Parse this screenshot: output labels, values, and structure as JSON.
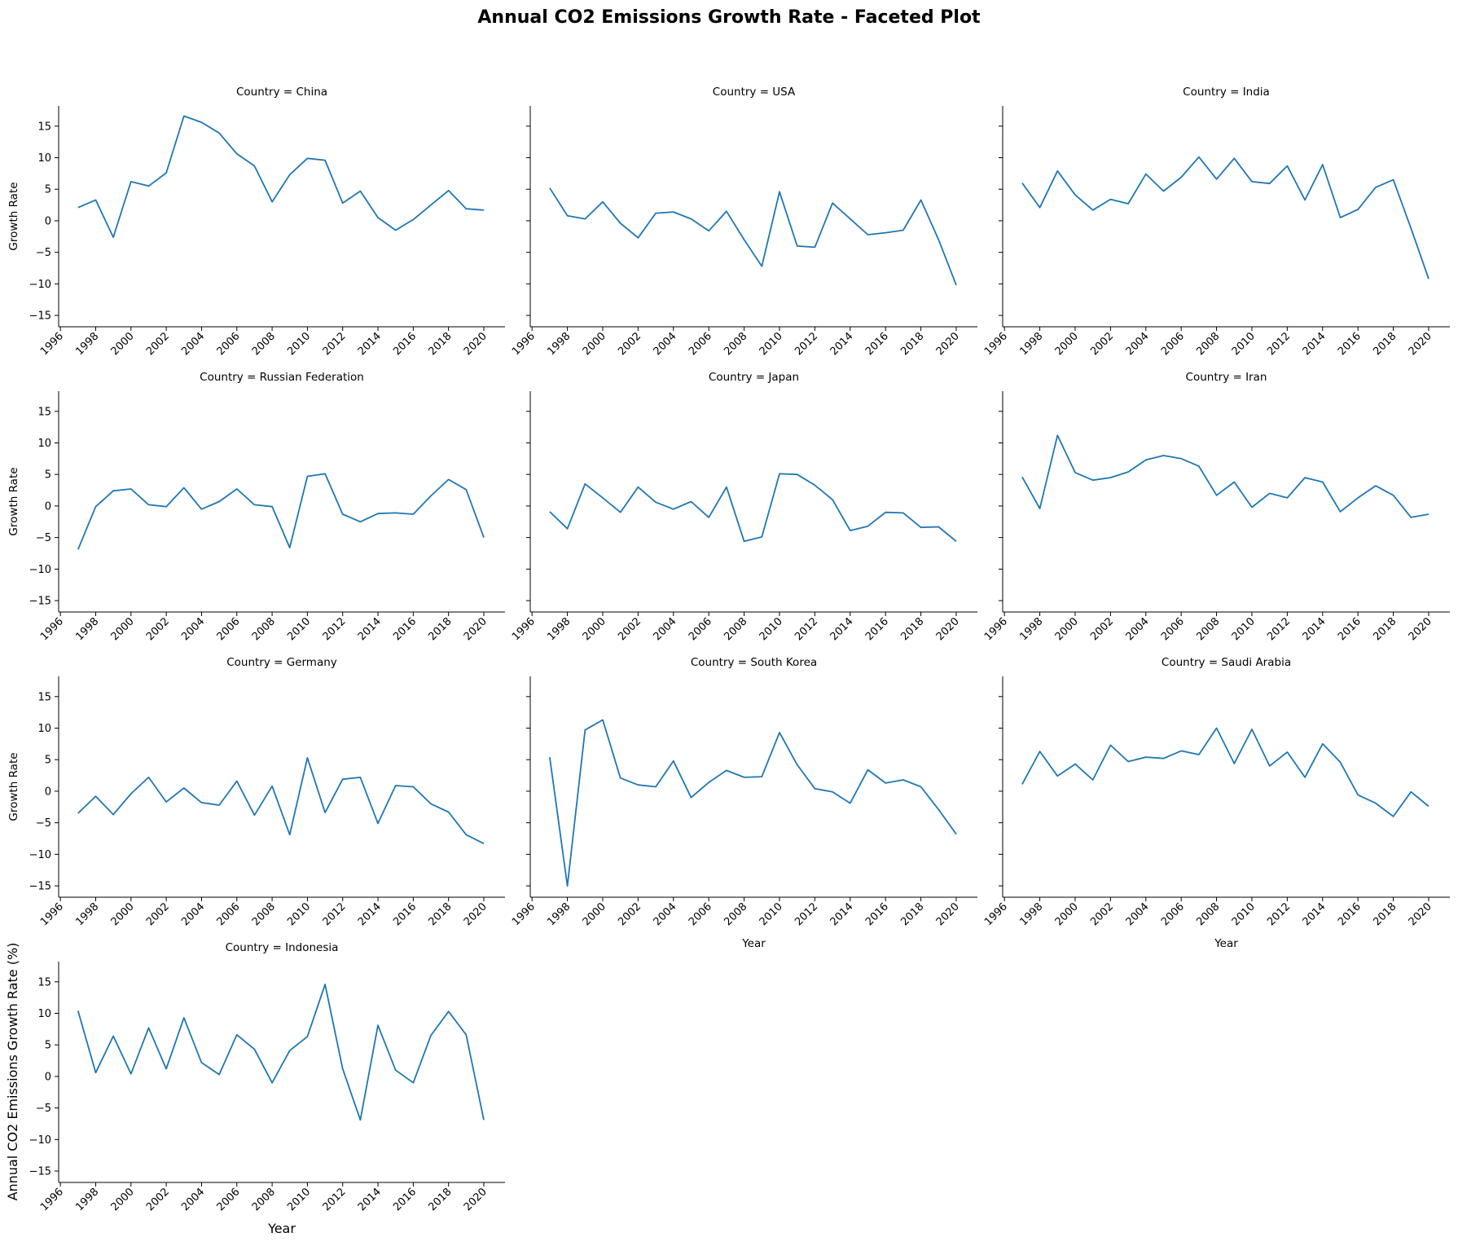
{
  "chart_data": {
    "type": "line",
    "title": "Annual CO2 Emissions Growth Rate - Faceted Plot",
    "facet_prefix": "Country = ",
    "panel_ylabel": "Growth Rate",
    "panel_xlabel": "Year",
    "figure_ylabel": "Annual CO2 Emissions Growth Rate (%)",
    "xlim": [
      1995.9,
      2021.2
    ],
    "ylim": [
      -16.8,
      18.2
    ],
    "xticks": [
      "1996",
      "1998",
      "2000",
      "2002",
      "2004",
      "2006",
      "2008",
      "2010",
      "2012",
      "2014",
      "2016",
      "2018",
      "2020"
    ],
    "yticks": [
      "−15",
      "−10",
      "−5",
      "0",
      "5",
      "10",
      "15"
    ],
    "line_color": "#1f77b4",
    "x": [
      1997,
      1998,
      1999,
      2000,
      2001,
      2002,
      2003,
      2004,
      2005,
      2006,
      2007,
      2008,
      2009,
      2010,
      2011,
      2012,
      2013,
      2014,
      2015,
      2016,
      2017,
      2018,
      2019,
      2020
    ],
    "series": [
      {
        "name": "China",
        "values": [
          2.1,
          3.3,
          -2.6,
          6.2,
          5.5,
          7.6,
          16.6,
          15.6,
          13.9,
          10.6,
          8.7,
          3.0,
          7.3,
          9.9,
          9.6,
          2.8,
          4.7,
          0.5,
          -1.5,
          0.2,
          2.5,
          4.8,
          1.9,
          1.7
        ]
      },
      {
        "name": "USA",
        "values": [
          5.2,
          0.8,
          0.3,
          3.0,
          -0.4,
          -2.7,
          1.2,
          1.4,
          0.3,
          -1.6,
          1.5,
          -3.0,
          -7.2,
          4.6,
          -4.0,
          -4.2,
          2.8,
          0.3,
          -2.2,
          -1.9,
          -1.5,
          3.3,
          -3.0,
          -10.2
        ]
      },
      {
        "name": "India",
        "values": [
          6.0,
          2.1,
          7.9,
          4.1,
          1.7,
          3.4,
          2.7,
          7.4,
          4.7,
          6.9,
          10.1,
          6.6,
          9.9,
          6.2,
          5.9,
          8.7,
          3.3,
          8.9,
          0.5,
          1.8,
          5.3,
          6.5,
          -1.2,
          -9.2
        ]
      },
      {
        "name": "Russian Federation",
        "values": [
          -6.9,
          -0.1,
          2.4,
          2.7,
          0.2,
          -0.1,
          2.9,
          -0.5,
          0.7,
          2.7,
          0.2,
          -0.1,
          -6.6,
          4.7,
          5.1,
          -1.3,
          -2.5,
          -1.2,
          -1.1,
          -1.3,
          1.6,
          4.2,
          2.6,
          -5.0
        ]
      },
      {
        "name": "Japan",
        "values": [
          -0.9,
          -3.6,
          3.5,
          1.3,
          -1.0,
          3.0,
          0.6,
          -0.5,
          0.7,
          -1.8,
          3.0,
          -5.6,
          -4.9,
          5.1,
          5.0,
          3.3,
          1.0,
          -3.9,
          -3.2,
          -1.0,
          -1.1,
          -3.4,
          -3.3,
          -5.6
        ]
      },
      {
        "name": "Iran",
        "values": [
          4.6,
          -0.4,
          11.2,
          5.3,
          4.1,
          4.5,
          5.4,
          7.3,
          8.0,
          7.5,
          6.3,
          1.7,
          3.8,
          -0.2,
          2.0,
          1.3,
          4.5,
          3.8,
          -0.9,
          1.3,
          3.2,
          1.7,
          -1.8,
          -1.3
        ]
      },
      {
        "name": "Germany",
        "values": [
          -3.5,
          -0.8,
          -3.7,
          -0.4,
          2.2,
          -1.7,
          0.5,
          -1.8,
          -2.2,
          1.6,
          -3.8,
          0.8,
          -6.9,
          5.3,
          -3.4,
          1.9,
          2.2,
          -5.1,
          0.9,
          0.7,
          -2.0,
          -3.3,
          -6.9,
          -8.3
        ]
      },
      {
        "name": "South Korea",
        "values": [
          5.4,
          -15.0,
          9.7,
          11.3,
          2.1,
          1.0,
          0.7,
          4.8,
          -1.0,
          1.4,
          3.3,
          2.2,
          2.3,
          9.3,
          4.2,
          0.4,
          -0.1,
          -1.9,
          3.4,
          1.3,
          1.8,
          0.7,
          -2.9,
          -6.8
        ]
      },
      {
        "name": "Saudi Arabia",
        "values": [
          1.1,
          6.3,
          2.4,
          4.3,
          1.8,
          7.3,
          4.7,
          5.4,
          5.2,
          6.4,
          5.8,
          10.0,
          4.4,
          9.8,
          4.0,
          6.2,
          2.2,
          7.5,
          4.6,
          -0.6,
          -1.9,
          -4.0,
          -0.1,
          -2.4
        ]
      },
      {
        "name": "Indonesia",
        "values": [
          10.4,
          0.6,
          6.4,
          0.4,
          7.7,
          1.2,
          9.3,
          2.2,
          0.3,
          6.6,
          4.3,
          -1.0,
          4.1,
          6.3,
          14.6,
          1.2,
          -6.9,
          8.1,
          1.0,
          -1.0,
          6.5,
          10.3,
          6.6,
          -6.9
        ]
      }
    ]
  }
}
